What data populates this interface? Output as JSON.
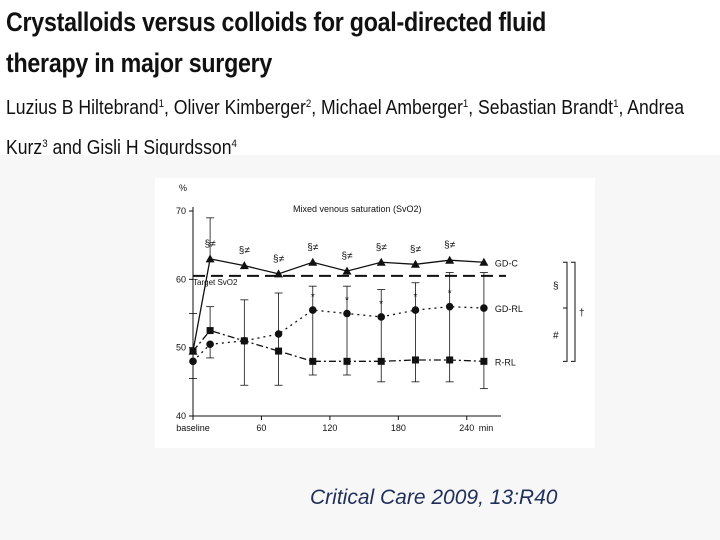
{
  "header": {
    "title": "Crystalloids versus colloids for goal-directed fluid therapy in major surgery",
    "authors": [
      {
        "name": "Luzius B Hiltebrand",
        "aff": "1",
        "sep": ", "
      },
      {
        "name": "Oliver Kimberger",
        "aff": "2",
        "sep": ", "
      },
      {
        "name": "Michael Amberger",
        "aff": "1",
        "sep": ", "
      },
      {
        "name": "Sebastian Brandt",
        "aff": "1",
        "sep": ", "
      },
      {
        "name": "Andrea Kurz",
        "aff": "3",
        "sep": " and "
      },
      {
        "name": "Gisli H Sigurdsson",
        "aff": "4",
        "sep": ""
      }
    ]
  },
  "citation": "Critical Care 2009, 13:R40",
  "colors": {
    "ink": "#111111",
    "slide_background": "#f7f7f7",
    "citation": "#1f2f5a"
  },
  "chart_data": {
    "type": "line",
    "title": "Mixed venous saturation (SvO2)",
    "ylabel": "%",
    "xunit": "min",
    "ylim": [
      40,
      70
    ],
    "xlim": [
      0,
      270
    ],
    "yticks": [
      40,
      50,
      60,
      70
    ],
    "xticks": [
      {
        "x": 0,
        "label": "baseline"
      },
      {
        "x": 60,
        "label": "60"
      },
      {
        "x": 120,
        "label": "120"
      },
      {
        "x": 180,
        "label": "180"
      },
      {
        "x": 240,
        "label": "240"
      }
    ],
    "grid": false,
    "legend": "right",
    "reference_line": {
      "y": 60.5,
      "label": "Target SvO2"
    },
    "series": [
      {
        "name": "GD-C",
        "marker": "triangle",
        "dash": "",
        "x": [
          0,
          15,
          45,
          75,
          105,
          135,
          165,
          195,
          225,
          255
        ],
        "y": [
          49.5,
          63,
          62,
          60.8,
          62.5,
          61.2,
          62.5,
          62.2,
          62.8,
          62.5
        ],
        "err_high": [
          null,
          69,
          null,
          null,
          null,
          null,
          null,
          null,
          null,
          null
        ],
        "annotations": [
          "",
          "§≠",
          "§≠",
          "§≠",
          "§≠",
          "§≠",
          "§≠",
          "§≠",
          "§≠",
          ""
        ]
      },
      {
        "name": "GD-RL",
        "marker": "circle",
        "dash": "2,4",
        "x": [
          0,
          15,
          45,
          75,
          105,
          135,
          165,
          195,
          225,
          255
        ],
        "y": [
          48,
          50.5,
          51,
          52,
          55.5,
          55,
          54.5,
          55.5,
          56,
          55.8
        ],
        "err_low": [
          45.5,
          48.5,
          44.5,
          44.5,
          46,
          46,
          45,
          45,
          45,
          44
        ],
        "err_high": [
          null,
          null,
          57,
          58,
          59,
          59,
          58.5,
          59.5,
          61,
          61
        ],
        "annotations": [
          "",
          "",
          "",
          "",
          "*",
          "*",
          "*",
          "*",
          "*",
          ""
        ]
      },
      {
        "name": "R-RL",
        "marker": "square",
        "dash": "7,3,2,3",
        "x": [
          0,
          15,
          45,
          75,
          105,
          135,
          165,
          195,
          225,
          255
        ],
        "y": [
          49.5,
          52.5,
          51,
          49.5,
          48,
          48,
          48,
          48.2,
          48.2,
          48
        ],
        "err_high": [
          55,
          56,
          null,
          null,
          null,
          null,
          null,
          null,
          null,
          null
        ]
      }
    ],
    "significance_labels": [
      "§",
      "†",
      "#"
    ]
  }
}
